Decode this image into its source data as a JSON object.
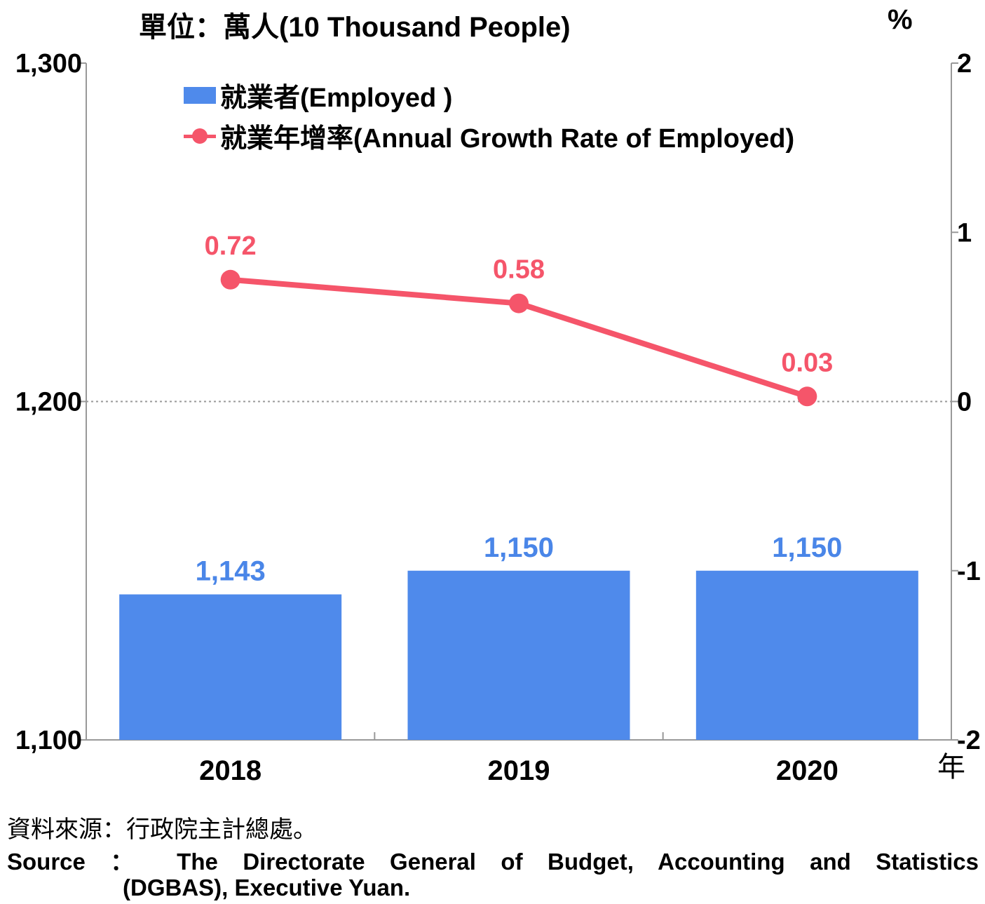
{
  "header": {
    "unit_left": "單位：萬人(10 Thousand People)",
    "unit_right": "%"
  },
  "legend": {
    "bar_label": "就業者(Employed )",
    "line_label": "就業年增率(Annual Growth Rate of Employed)"
  },
  "colors": {
    "bar": "#4F8AEB",
    "bar_label": "#4A86E8",
    "line": "#F5556A",
    "axis": "#999999"
  },
  "chart_data": {
    "type": "bar+line",
    "categories": [
      "2018",
      "2019",
      "2020"
    ],
    "x_unit_label": "年",
    "series": [
      {
        "name": "就業者(Employed )",
        "type": "bar",
        "axis": "left",
        "values": [
          1143,
          1150,
          1150
        ],
        "labels": [
          "1,143",
          "1,150",
          "1,150"
        ]
      },
      {
        "name": "就業年增率(Annual Growth Rate of Employed)",
        "type": "line",
        "axis": "right",
        "values": [
          0.72,
          0.58,
          0.03
        ],
        "labels": [
          "0.72",
          "0.58",
          "0.03"
        ]
      }
    ],
    "y_left": {
      "min": 1100,
      "max": 1300,
      "ticks": [
        1100,
        1200,
        1300
      ],
      "tick_labels": [
        "1,100",
        "1,200",
        "1,300"
      ]
    },
    "y_right": {
      "min": -2,
      "max": 2,
      "ticks": [
        -2,
        -1,
        0,
        1,
        2
      ],
      "tick_labels": [
        "-2",
        "-1",
        "0",
        "1",
        "2"
      ]
    },
    "reference_line": {
      "axis": "right",
      "value": 0,
      "style": "dotted"
    },
    "grid": false,
    "legend_position": "top-left"
  },
  "footer": {
    "source_zh": "資料來源：行政院主計總處。",
    "source_en_line1": "Source ： The Directorate General of Budget, Accounting and Statistics",
    "source_en_line2": "(DGBAS), Executive Yuan."
  }
}
